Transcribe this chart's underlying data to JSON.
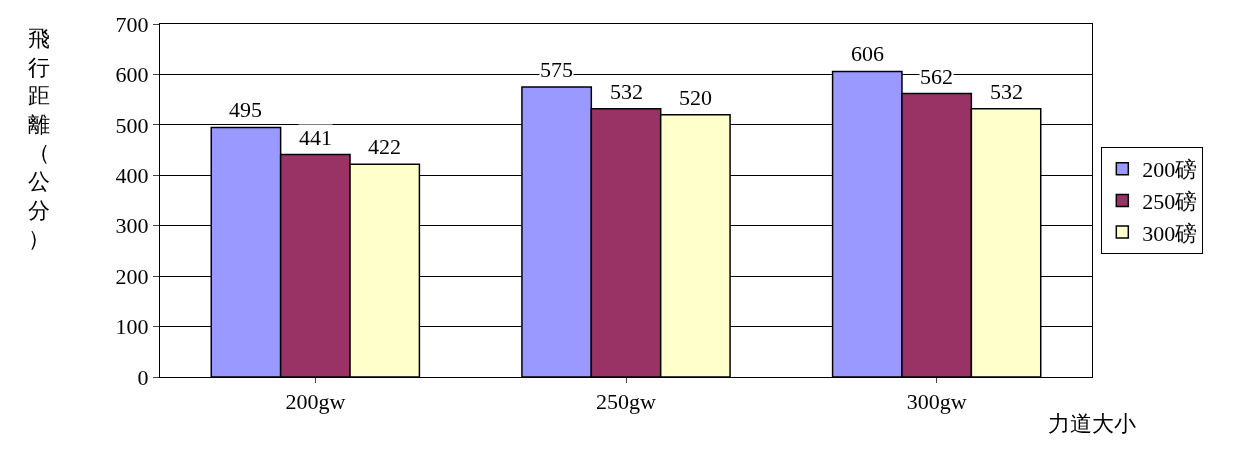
{
  "chart_data": {
    "type": "bar",
    "ylabel": "飛行距離（公分）",
    "xlabel": "力道大小",
    "categories": [
      "200gw",
      "250gw",
      "300gw"
    ],
    "series": [
      {
        "name": "200磅",
        "color": "#9999ff",
        "values": [
          495,
          575,
          606
        ]
      },
      {
        "name": "250磅",
        "color": "#993366",
        "values": [
          441,
          532,
          562
        ]
      },
      {
        "name": "300磅",
        "color": "#ffffcc",
        "values": [
          422,
          520,
          532
        ]
      }
    ],
    "ylim": [
      0,
      700
    ],
    "yticks": [
      0,
      100,
      200,
      300,
      400,
      500,
      600,
      700
    ],
    "grid": "y",
    "legend": "right",
    "data_labels": true
  }
}
